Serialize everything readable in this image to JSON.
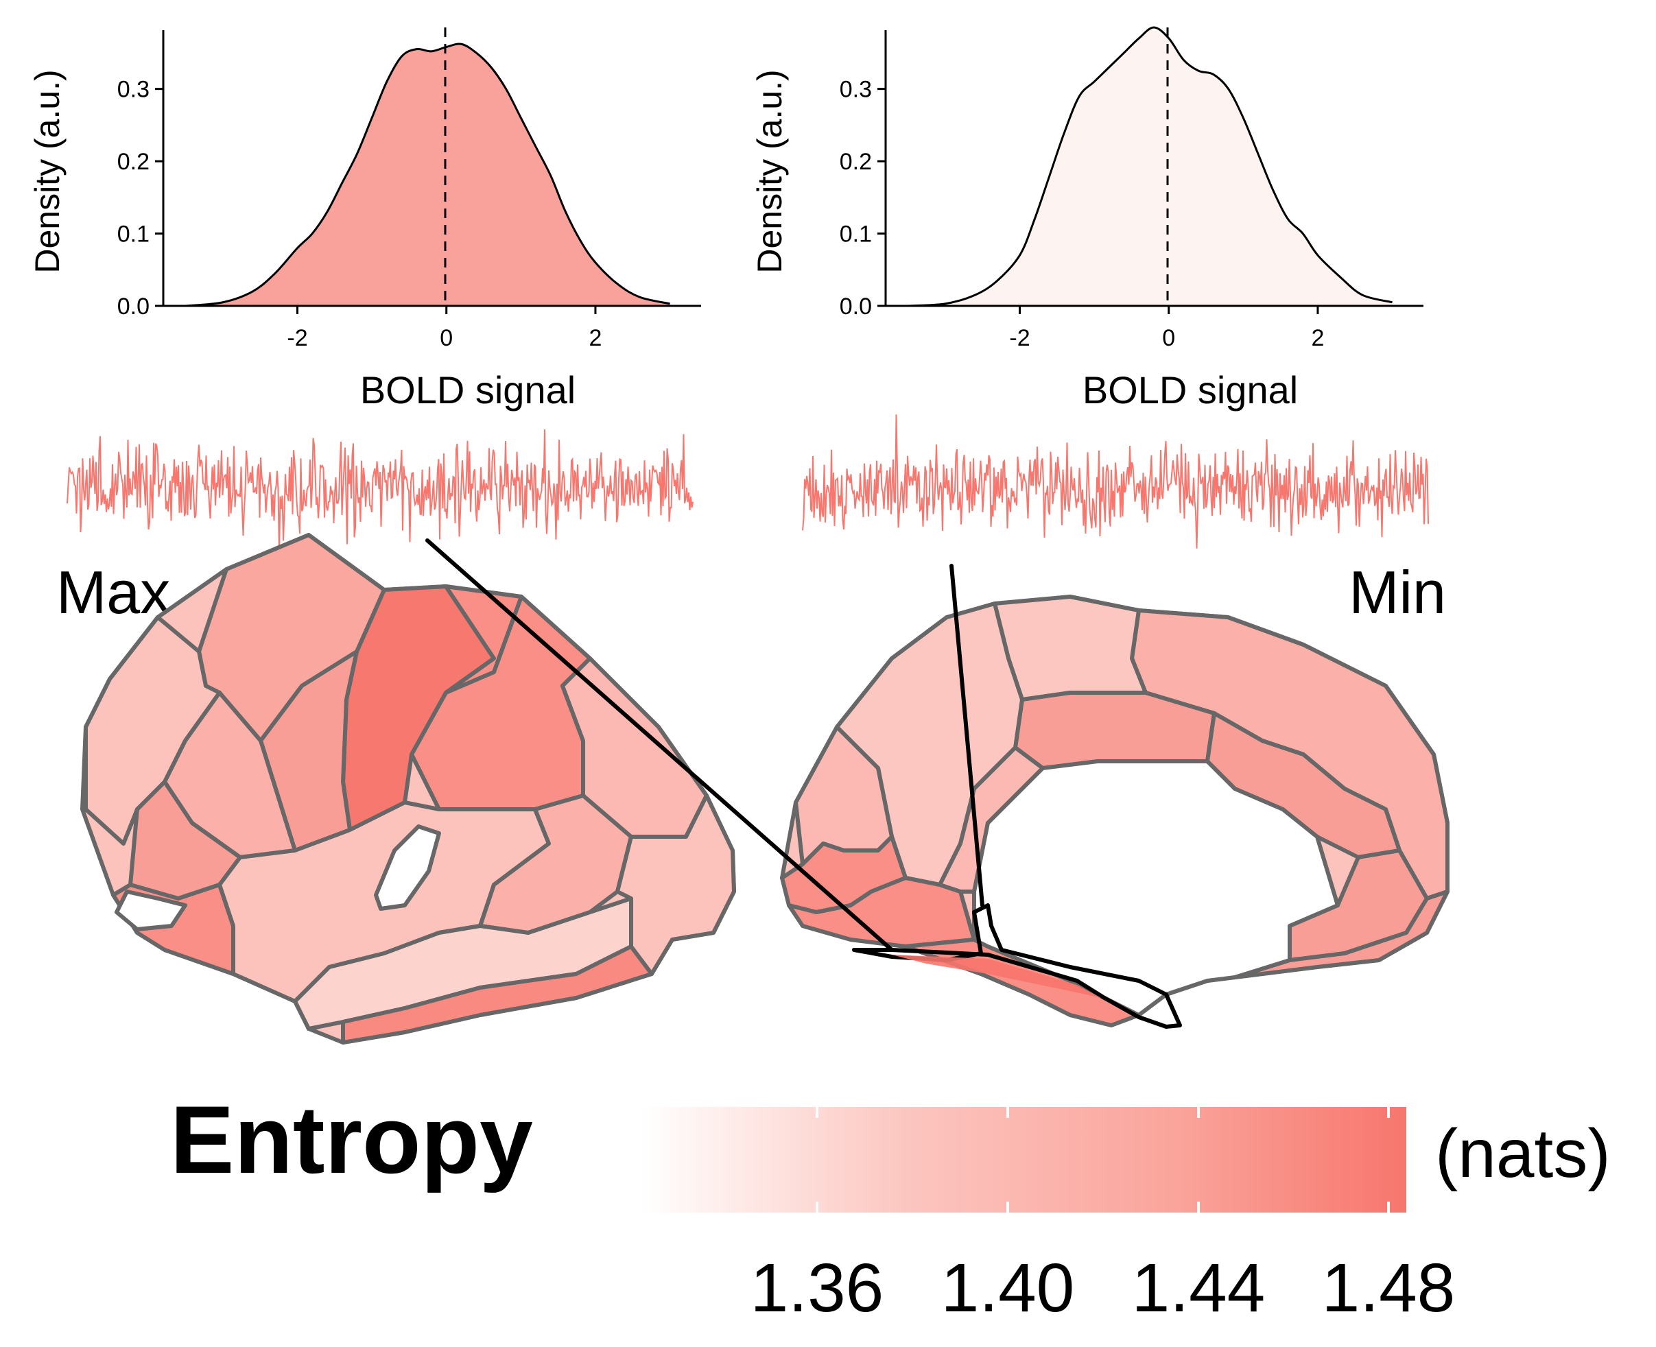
{
  "colors": {
    "low": "#ffffff",
    "high": "#f7766d",
    "outline": "#676767",
    "trace": "#f7766d",
    "max_fill": "#f8a29b",
    "min_fill": "#fdf3f1"
  },
  "panels": {
    "max_label": "Max",
    "min_label": "Min"
  },
  "colorbar": {
    "title": "Entropy",
    "unit": "(nats)",
    "ticks": [
      "1.36",
      "1.40",
      "1.44",
      "1.48"
    ]
  },
  "chart_data": [
    {
      "type": "area",
      "panel": "max",
      "xlabel": "BOLD signal",
      "ylabel": "Density (a.u.)",
      "xlim": [
        -3.8,
        3.4
      ],
      "ylim": [
        0,
        0.385
      ],
      "xticks": [
        "-2",
        "0",
        "2"
      ],
      "yticks": [
        "0.0",
        "0.1",
        "0.2",
        "0.3"
      ],
      "reference_line_x": 0,
      "x": [
        -3.5,
        -3.0,
        -2.6,
        -2.3,
        -2.0,
        -1.8,
        -1.6,
        -1.4,
        -1.2,
        -1.0,
        -0.8,
        -0.6,
        -0.4,
        -0.2,
        0.0,
        0.2,
        0.4,
        0.6,
        0.8,
        1.0,
        1.2,
        1.4,
        1.6,
        1.8,
        2.0,
        2.3,
        2.6,
        3.0
      ],
      "y": [
        0.0,
        0.005,
        0.02,
        0.045,
        0.08,
        0.1,
        0.13,
        0.17,
        0.21,
        0.26,
        0.31,
        0.345,
        0.355,
        0.352,
        0.358,
        0.362,
        0.35,
        0.33,
        0.3,
        0.26,
        0.22,
        0.18,
        0.13,
        0.09,
        0.06,
        0.03,
        0.012,
        0.003
      ]
    },
    {
      "type": "area",
      "panel": "min",
      "xlabel": "BOLD signal",
      "ylabel": "Density (a.u.)",
      "xlim": [
        -3.8,
        3.4
      ],
      "ylim": [
        0,
        0.385
      ],
      "xticks": [
        "-2",
        "0",
        "2"
      ],
      "yticks": [
        "0.0",
        "0.1",
        "0.2",
        "0.3"
      ],
      "reference_line_x": 0,
      "x": [
        -3.5,
        -3.0,
        -2.6,
        -2.3,
        -2.0,
        -1.8,
        -1.6,
        -1.4,
        -1.2,
        -1.0,
        -0.8,
        -0.6,
        -0.4,
        -0.2,
        0.0,
        0.2,
        0.4,
        0.6,
        0.8,
        1.0,
        1.2,
        1.4,
        1.6,
        1.8,
        2.0,
        2.3,
        2.6,
        3.0
      ],
      "y": [
        0.0,
        0.003,
        0.015,
        0.035,
        0.07,
        0.12,
        0.18,
        0.24,
        0.29,
        0.31,
        0.33,
        0.35,
        0.37,
        0.385,
        0.37,
        0.34,
        0.325,
        0.32,
        0.3,
        0.26,
        0.21,
        0.16,
        0.12,
        0.1,
        0.07,
        0.04,
        0.015,
        0.005
      ]
    }
  ]
}
